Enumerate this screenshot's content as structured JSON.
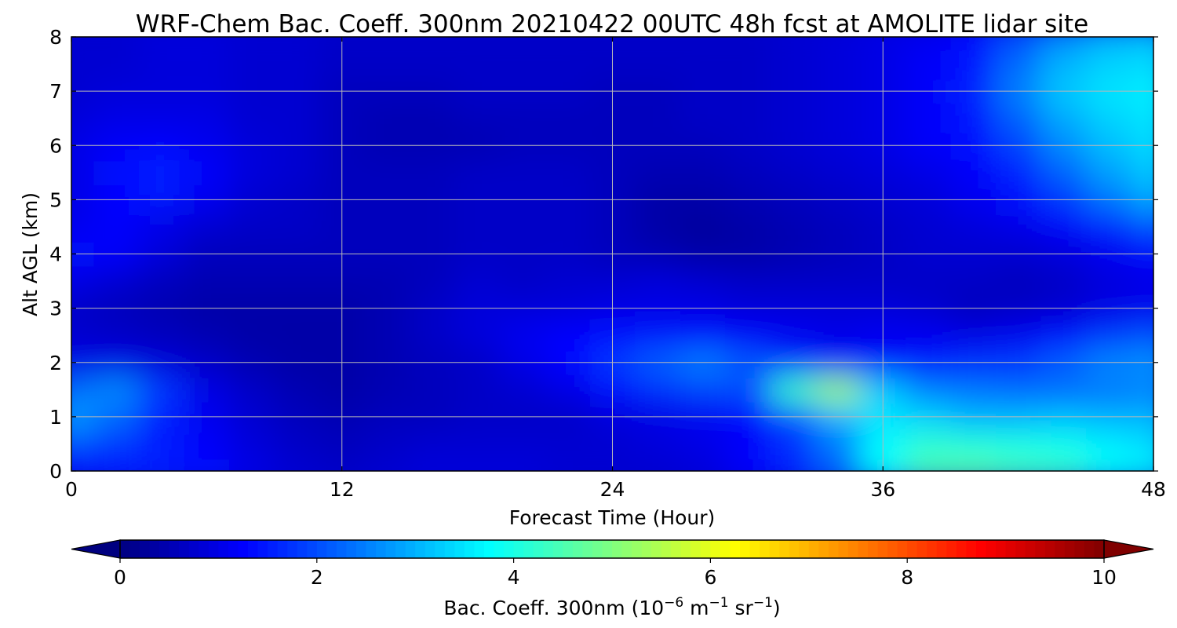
{
  "chart_data": {
    "type": "heatmap",
    "title": "WRF-Chem Bac. Coeff. 300nm  20210422 00UTC 48h fcst at AMOLITE lidar site",
    "xlabel": "Forecast Time (Hour)",
    "ylabel": "Alt AGL (km)",
    "xlim": [
      0,
      48
    ],
    "ylim": [
      0,
      8
    ],
    "x_ticks": [
      0,
      12,
      24,
      36,
      48
    ],
    "y_ticks": [
      0,
      1,
      2,
      3,
      4,
      5,
      6,
      7,
      8
    ],
    "grid": true,
    "colormap": "jet",
    "colorbar": {
      "label": "Bac. Coeff. 300nm  (10^-6 m^-1 sr^-1)",
      "label_parts": {
        "prefix": "Bac. Coeff. 300nm  (10",
        "exp1": "−6",
        "mid1": " m",
        "exp2": "−1",
        "mid2": " sr",
        "exp3": "−1",
        "suffix": ")"
      },
      "range": [
        0,
        10
      ],
      "ticks": [
        0,
        2,
        4,
        6,
        8,
        10
      ],
      "extend": "both",
      "orientation": "horizontal",
      "placement": "bottom"
    },
    "x": [
      0,
      2,
      4,
      6,
      8,
      10,
      12,
      14,
      16,
      18,
      20,
      22,
      24,
      26,
      28,
      30,
      32,
      34,
      36,
      38,
      40,
      42,
      44,
      46,
      48
    ],
    "y": [
      0,
      0.5,
      1,
      1.5,
      2,
      2.5,
      3,
      3.5,
      4,
      4.5,
      5,
      5.5,
      6,
      6.5,
      7,
      7.5,
      8
    ],
    "z": [
      [
        1.2,
        1.5,
        1.6,
        1.4,
        1.0,
        0.8,
        0.7,
        0.8,
        0.9,
        0.9,
        0.9,
        0.8,
        0.8,
        0.8,
        0.9,
        1.2,
        1.6,
        2.3,
        3.8,
        4.5,
        4.6,
        4.4,
        4.3,
        3.8,
        3.6
      ],
      [
        2.0,
        1.8,
        1.5,
        1.2,
        0.9,
        0.7,
        0.6,
        0.7,
        0.8,
        0.8,
        0.8,
        0.8,
        0.8,
        0.9,
        1.0,
        1.2,
        1.7,
        2.4,
        3.7,
        4.2,
        4.1,
        4.0,
        3.9,
        3.6,
        3.4
      ],
      [
        2.8,
        2.3,
        1.6,
        1.1,
        0.8,
        0.6,
        0.5,
        0.6,
        0.6,
        0.7,
        0.7,
        0.7,
        0.9,
        1.0,
        1.1,
        1.3,
        2.0,
        3.0,
        3.5,
        3.3,
        3.0,
        3.0,
        3.1,
        3.0,
        3.0
      ],
      [
        2.3,
        2.6,
        1.8,
        1.0,
        0.7,
        0.5,
        0.4,
        0.5,
        0.6,
        0.7,
        0.8,
        1.0,
        1.4,
        1.7,
        1.9,
        2.0,
        4.3,
        5.3,
        3.2,
        2.5,
        2.4,
        2.3,
        2.3,
        2.4,
        2.5
      ],
      [
        1.0,
        1.0,
        0.9,
        0.7,
        0.5,
        0.4,
        0.4,
        0.5,
        0.6,
        0.7,
        1.0,
        1.3,
        1.8,
        2.2,
        2.5,
        2.1,
        1.7,
        1.5,
        1.4,
        1.5,
        1.7,
        1.8,
        2.2,
        2.6,
        2.7
      ],
      [
        0.8,
        0.7,
        0.6,
        0.5,
        0.4,
        0.4,
        0.4,
        0.5,
        0.7,
        0.9,
        1.1,
        1.3,
        1.4,
        1.5,
        1.4,
        1.2,
        1.1,
        1.0,
        1.1,
        1.1,
        1.0,
        1.1,
        1.4,
        1.8,
        2.0
      ],
      [
        0.7,
        0.6,
        0.5,
        0.4,
        0.4,
        0.4,
        0.4,
        0.5,
        0.7,
        0.9,
        0.9,
        0.9,
        1.0,
        1.0,
        1.0,
        0.9,
        0.9,
        0.9,
        0.9,
        0.8,
        0.6,
        0.7,
        0.8,
        1.0,
        1.1
      ],
      [
        1.0,
        0.8,
        0.6,
        0.5,
        0.5,
        0.5,
        0.5,
        0.5,
        0.6,
        0.8,
        0.7,
        0.8,
        0.8,
        0.9,
        0.8,
        0.7,
        0.7,
        0.7,
        0.7,
        0.7,
        0.7,
        0.6,
        0.7,
        0.9,
        1.0
      ],
      [
        1.4,
        1.2,
        0.9,
        0.6,
        0.6,
        0.6,
        0.6,
        0.6,
        0.6,
        0.7,
        0.7,
        0.7,
        0.6,
        0.5,
        0.4,
        0.4,
        0.5,
        0.6,
        0.7,
        0.8,
        0.8,
        0.8,
        0.9,
        1.1,
        1.3
      ],
      [
        1.1,
        1.2,
        1.0,
        0.8,
        0.7,
        0.7,
        0.6,
        0.6,
        0.6,
        0.7,
        0.7,
        0.7,
        0.6,
        0.4,
        0.3,
        0.4,
        0.5,
        0.6,
        0.7,
        0.8,
        0.9,
        1.0,
        1.2,
        1.6,
        2.0
      ],
      [
        1.0,
        1.3,
        1.5,
        1.1,
        0.8,
        0.7,
        0.6,
        0.6,
        0.6,
        0.7,
        0.7,
        0.7,
        0.6,
        0.4,
        0.4,
        0.5,
        0.6,
        0.7,
        0.8,
        0.9,
        1.1,
        1.4,
        1.8,
        2.4,
        2.9
      ],
      [
        1.0,
        1.4,
        1.6,
        1.2,
        0.9,
        0.8,
        0.6,
        0.6,
        0.6,
        0.7,
        0.7,
        0.7,
        0.6,
        0.5,
        0.5,
        0.6,
        0.7,
        0.8,
        0.9,
        1.0,
        1.2,
        1.6,
        2.2,
        2.8,
        3.2
      ],
      [
        1.0,
        1.2,
        1.3,
        1.1,
        0.9,
        0.8,
        0.6,
        0.5,
        0.5,
        0.5,
        0.6,
        0.6,
        0.6,
        0.6,
        0.6,
        0.7,
        0.8,
        0.9,
        1.0,
        1.2,
        1.4,
        1.9,
        2.6,
        3.1,
        3.4
      ],
      [
        0.9,
        1.0,
        1.0,
        1.0,
        0.8,
        0.8,
        0.6,
        0.5,
        0.5,
        0.6,
        0.6,
        0.6,
        0.6,
        0.6,
        0.7,
        0.7,
        0.8,
        0.9,
        1.0,
        1.2,
        1.5,
        2.2,
        2.9,
        3.3,
        3.5
      ],
      [
        0.8,
        0.9,
        0.9,
        0.9,
        0.8,
        0.8,
        0.6,
        0.6,
        0.6,
        0.7,
        0.7,
        0.7,
        0.6,
        0.6,
        0.7,
        0.7,
        0.8,
        0.9,
        1.0,
        1.2,
        1.6,
        2.5,
        3.2,
        3.5,
        3.6
      ],
      [
        0.8,
        0.8,
        0.9,
        0.9,
        0.8,
        0.8,
        0.7,
        0.7,
        0.7,
        0.7,
        0.7,
        0.7,
        0.7,
        0.7,
        0.7,
        0.7,
        0.8,
        0.9,
        1.0,
        1.2,
        1.5,
        2.3,
        3.0,
        3.3,
        3.4
      ],
      [
        0.8,
        0.8,
        0.9,
        0.9,
        0.8,
        0.8,
        0.7,
        0.7,
        0.7,
        0.7,
        0.7,
        0.7,
        0.7,
        0.7,
        0.7,
        0.7,
        0.8,
        0.9,
        1.0,
        1.1,
        1.4,
        2.0,
        2.6,
        3.0,
        3.1
      ]
    ]
  }
}
